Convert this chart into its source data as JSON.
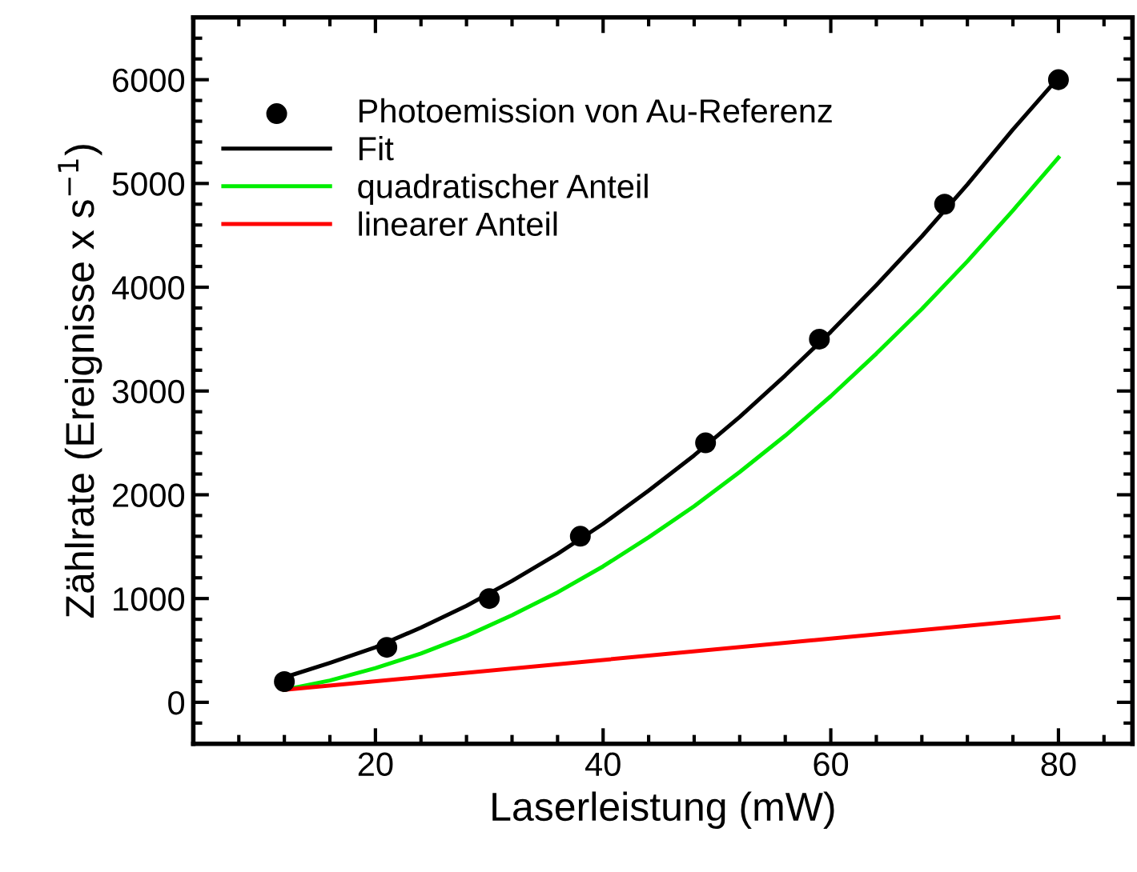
{
  "chart_data": {
    "type": "line",
    "xlabel": "Laserleistung (mW)",
    "ylabel": "Zählrate (Ereignisse x s$^{−1}$)",
    "xlim": [
      4,
      86.5
    ],
    "xticks": [
      20,
      40,
      60,
      80
    ],
    "ylim": [
      -400,
      6600
    ],
    "yticks": [
      0,
      1000,
      2000,
      3000,
      4000,
      5000,
      6000
    ],
    "legend": "top left",
    "grid": false,
    "line_style": "solid",
    "series": [
      {
        "name": "Photoemission von Au-Referenz",
        "type": "scatter",
        "marker": "circle",
        "color": "#000000",
        "x": [
          12,
          21,
          30,
          38,
          49,
          59,
          70,
          80
        ],
        "values": [
          200,
          530,
          1000,
          1600,
          2500,
          3500,
          4800,
          6000
        ]
      },
      {
        "name": "Fit",
        "color": "#000000",
        "x": [
          12,
          16,
          20,
          24,
          28,
          32,
          36,
          40,
          44,
          48,
          52,
          56,
          60,
          64,
          68,
          72,
          76,
          80
        ],
        "values": [
          240,
          380,
          530,
          720,
          930,
          1170,
          1430,
          1720,
          2040,
          2380,
          2750,
          3150,
          3570,
          4020,
          4490,
          4990,
          5520,
          6020
        ]
      },
      {
        "name": "quadratischer Anteil",
        "color": "#00ee00",
        "x": [
          12,
          16,
          20,
          24,
          28,
          32,
          36,
          40,
          44,
          48,
          52,
          56,
          60,
          64,
          68,
          72,
          76,
          80
        ],
        "values": [
          120,
          210,
          330,
          470,
          640,
          840,
          1060,
          1310,
          1590,
          1890,
          2220,
          2570,
          2950,
          3360,
          3790,
          4250,
          4740,
          5250
        ]
      },
      {
        "name": "linearer Anteil",
        "color": "#ff0000",
        "x": [
          12,
          80
        ],
        "values": [
          120,
          820
        ]
      }
    ]
  }
}
